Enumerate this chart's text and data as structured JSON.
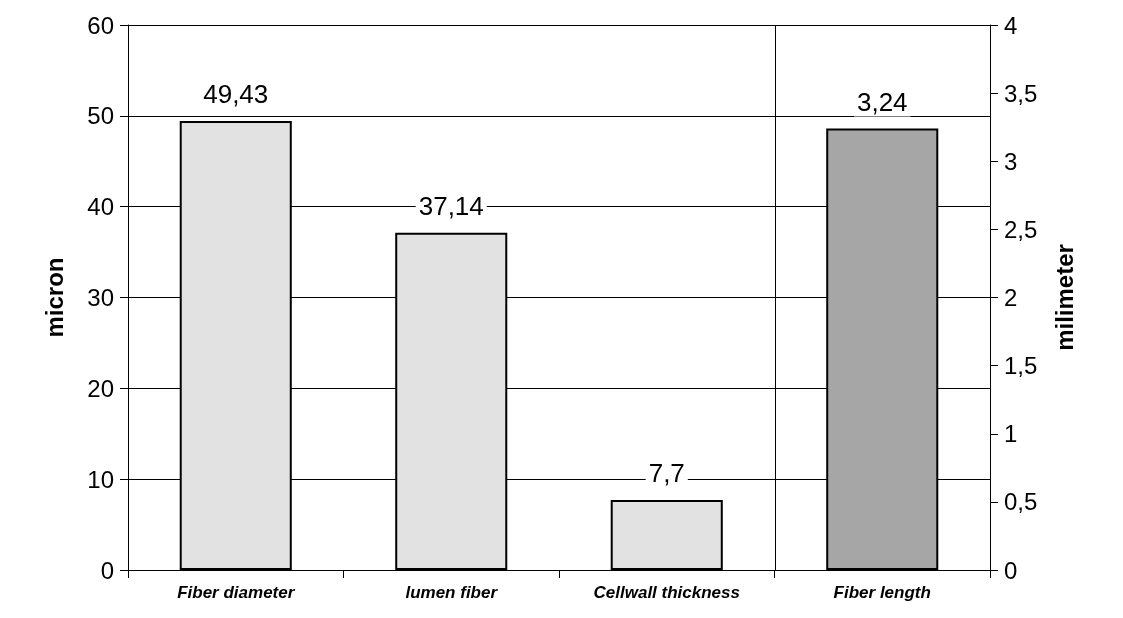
{
  "chart_data": {
    "type": "bar",
    "ylabel": "micron",
    "y2label": "milimeter",
    "categories": [
      "Fiber diameter",
      "lumen fiber",
      "Cellwall thickness",
      "Fiber length"
    ],
    "series": [
      {
        "color": "#e2e2e2",
        "values": [
          49.43,
          37.14,
          7.7,
          null
        ],
        "value_labels": [
          "49,43",
          "37,14",
          "7,7",
          null
        ]
      },
      {
        "color": "#a6a6a6",
        "axis": "y2",
        "values": [
          null,
          null,
          null,
          3.24
        ],
        "value_labels": [
          null,
          null,
          null,
          "3,24"
        ]
      }
    ],
    "ylim": [
      0,
      60
    ],
    "yticks": [
      0,
      10,
      20,
      30,
      40,
      50,
      60
    ],
    "y2lim": [
      0,
      4
    ],
    "y2ticks": [
      0,
      {
        "value": 0.5,
        "label": "0,5"
      },
      1,
      {
        "value": 1.5,
        "label": "1,5"
      },
      2,
      {
        "value": 2.5,
        "label": "2,5"
      },
      3,
      {
        "value": 3.5,
        "label": "3,5"
      },
      4
    ],
    "grid": "y"
  }
}
